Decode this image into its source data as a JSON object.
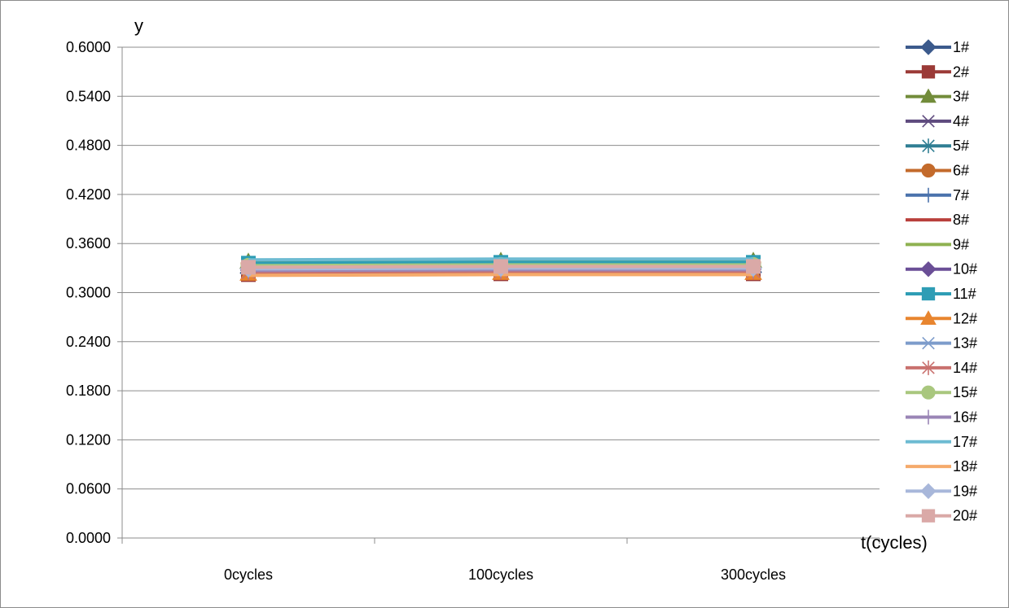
{
  "chart_data": {
    "type": "line",
    "title": "",
    "xlabel": "t(cycles)",
    "ylabel": "y",
    "categories": [
      "0cycles",
      "100cycles",
      "300cycles"
    ],
    "ylim": [
      0,
      0.6
    ],
    "yticks": [
      0,
      0.06,
      0.12,
      0.18,
      0.24,
      0.3,
      0.36,
      0.42,
      0.48,
      0.54,
      0.6
    ],
    "ytick_format": "0.0000",
    "grid": true,
    "legend_position": "right",
    "series": [
      {
        "name": "1#",
        "values": [
          0.324,
          0.325,
          0.325
        ],
        "color": "#3C5A8C",
        "marker": "diamond"
      },
      {
        "name": "2#",
        "values": [
          0.322,
          0.323,
          0.323
        ],
        "color": "#9B3A37",
        "marker": "square"
      },
      {
        "name": "3#",
        "values": [
          0.338,
          0.339,
          0.339
        ],
        "color": "#728C3A",
        "marker": "triangle"
      },
      {
        "name": "4#",
        "values": [
          0.326,
          0.327,
          0.327
        ],
        "color": "#5E4A7E",
        "marker": "x"
      },
      {
        "name": "5#",
        "values": [
          0.33,
          0.331,
          0.331
        ],
        "color": "#2F7E93",
        "marker": "asterisk"
      },
      {
        "name": "6#",
        "values": [
          0.335,
          0.336,
          0.336
        ],
        "color": "#C36A2B",
        "marker": "circle"
      },
      {
        "name": "7#",
        "values": [
          0.328,
          0.329,
          0.329
        ],
        "color": "#4A72AC",
        "marker": "plus"
      },
      {
        "name": "8#",
        "values": [
          0.332,
          0.333,
          0.333
        ],
        "color": "#B9403C",
        "marker": "none"
      },
      {
        "name": "9#",
        "values": [
          0.334,
          0.335,
          0.335
        ],
        "color": "#8FB251",
        "marker": "none"
      },
      {
        "name": "10#",
        "values": [
          0.329,
          0.33,
          0.33
        ],
        "color": "#6A4E96",
        "marker": "diamond"
      },
      {
        "name": "11#",
        "values": [
          0.336,
          0.337,
          0.337
        ],
        "color": "#2E9DB5",
        "marker": "square"
      },
      {
        "name": "12#",
        "values": [
          0.323,
          0.324,
          0.324
        ],
        "color": "#E8852F",
        "marker": "triangle"
      },
      {
        "name": "13#",
        "values": [
          0.331,
          0.332,
          0.332
        ],
        "color": "#7D9CCB",
        "marker": "x"
      },
      {
        "name": "14#",
        "values": [
          0.325,
          0.326,
          0.326
        ],
        "color": "#C9716E",
        "marker": "asterisk"
      },
      {
        "name": "15#",
        "values": [
          0.333,
          0.334,
          0.334
        ],
        "color": "#A9C77E",
        "marker": "circle"
      },
      {
        "name": "16#",
        "values": [
          0.327,
          0.328,
          0.328
        ],
        "color": "#9A85B6",
        "marker": "plus"
      },
      {
        "name": "17#",
        "values": [
          0.34,
          0.341,
          0.341
        ],
        "color": "#6DBBD2",
        "marker": "none"
      },
      {
        "name": "18#",
        "values": [
          0.321,
          0.322,
          0.322
        ],
        "color": "#F5AA6B",
        "marker": "none"
      },
      {
        "name": "19#",
        "values": [
          0.329,
          0.33,
          0.33
        ],
        "color": "#A8B7DA",
        "marker": "diamond"
      },
      {
        "name": "20#",
        "values": [
          0.331,
          0.332,
          0.332
        ],
        "color": "#DAA9A7",
        "marker": "square"
      }
    ]
  }
}
